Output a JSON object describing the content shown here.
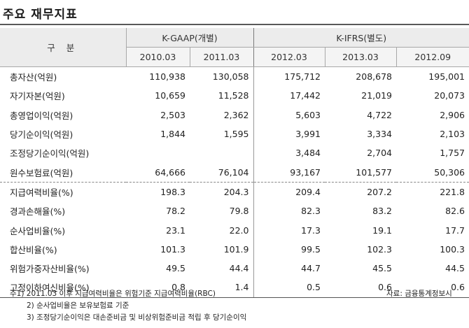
{
  "title": "주요 재무지표",
  "header": {
    "corner": "구  분",
    "group1": "K-GAAP(개별)",
    "group2": "K-IFRS(별도)",
    "periods": [
      "2010.03",
      "2011.03",
      "2012.03",
      "2013.03",
      "2012.09"
    ]
  },
  "rows": [
    {
      "label": "총자산(억원)",
      "values": [
        "110,938",
        "130,058",
        "175,712",
        "208,678",
        "195,001"
      ]
    },
    {
      "label": "자기자본(억원)",
      "values": [
        "10,659",
        "11,528",
        "17,442",
        "21,019",
        "20,073"
      ]
    },
    {
      "label": "총영업이익(억원)",
      "values": [
        "2,503",
        "2,362",
        "5,603",
        "4,722",
        "2,906"
      ]
    },
    {
      "label": "당기순이익(억원)",
      "values": [
        "1,844",
        "1,595",
        "3,991",
        "3,334",
        "2,103"
      ]
    },
    {
      "label": "조정당기순이익(억원)",
      "values": [
        "",
        "",
        "3,484",
        "2,704",
        "1,757"
      ]
    },
    {
      "label": "원수보험료(억원)",
      "values": [
        "64,666",
        "76,104",
        "93,167",
        "101,577",
        "50,306"
      ]
    },
    {
      "label": "지급여력비율(%)",
      "values": [
        "198.3",
        "204.3",
        "209.4",
        "207.2",
        "221.8"
      ]
    },
    {
      "label": "경과손해율(%)",
      "values": [
        "78.2",
        "79.8",
        "82.3",
        "83.2",
        "82.6"
      ]
    },
    {
      "label": "순사업비율(%)",
      "values": [
        "23.1",
        "22.0",
        "17.3",
        "19.1",
        "17.7"
      ]
    },
    {
      "label": "합산비율(%)",
      "values": [
        "101.3",
        "101.9",
        "99.5",
        "102.3",
        "100.3"
      ]
    },
    {
      "label": "위험가중자산비율(%)",
      "values": [
        "49.5",
        "44.4",
        "44.7",
        "45.5",
        "44.5"
      ]
    },
    {
      "label": "고정이하여신비율(%)",
      "values": [
        "0.8",
        "1.4",
        "0.5",
        "0.6",
        "0.6"
      ]
    }
  ],
  "footnotes": [
    "주1) 2011.03 이후 지급여력비율은 위험기준 지급여력비율(RBC)",
    "2) 순사업비율은 보유보험료 기준",
    "3) 조정당기순이익은 대손준비금 및 비상위험준비금 적립 후 당기순이익"
  ],
  "source": "자료: 금융통계정보시"
}
